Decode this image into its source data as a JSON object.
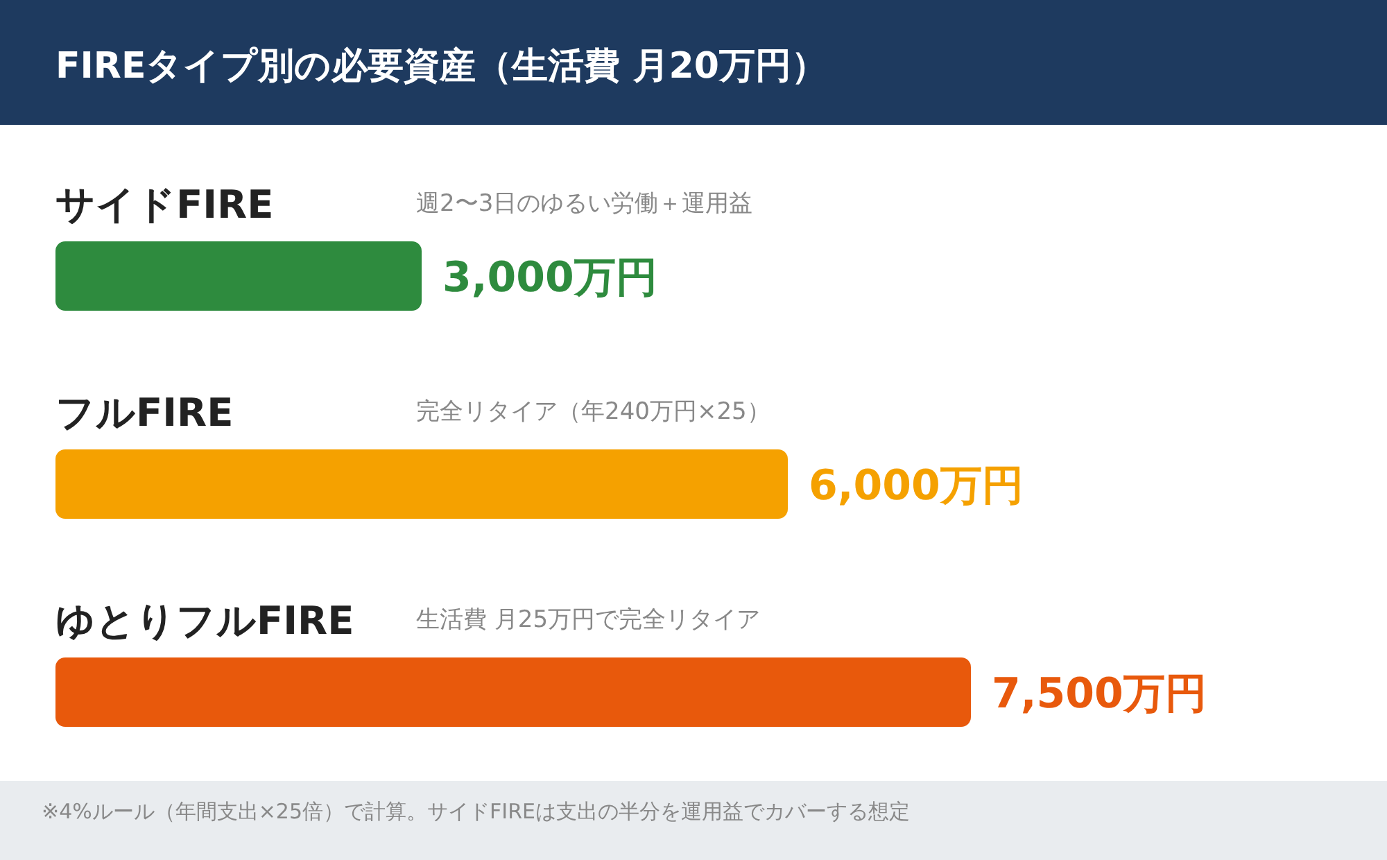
{
  "chart_data": {
    "type": "bar",
    "orientation": "horizontal",
    "title": "FIREタイプ別の必要資産（生活費 月20万円）",
    "categories": [
      "サイドFIRE",
      "フルFIRE",
      "ゆとりフルFIRE"
    ],
    "values": [
      3000,
      6000,
      7500
    ],
    "colors": [
      "#2e8b3e",
      "#f5a100",
      "#e8590c"
    ],
    "value_labels": [
      "3,000万円",
      "6,000万円",
      "7,500万円"
    ],
    "annotations": [
      "週2〜3日のゆるい労働＋運用益",
      "完全リタイア（年240万円×25）",
      "生活費 月25万円で完全リタイア",
      "※4%ルール（年間支出×25倍）で計算。サイドFIREは支出の半分を運用益でカバーする想定"
    ]
  }
}
